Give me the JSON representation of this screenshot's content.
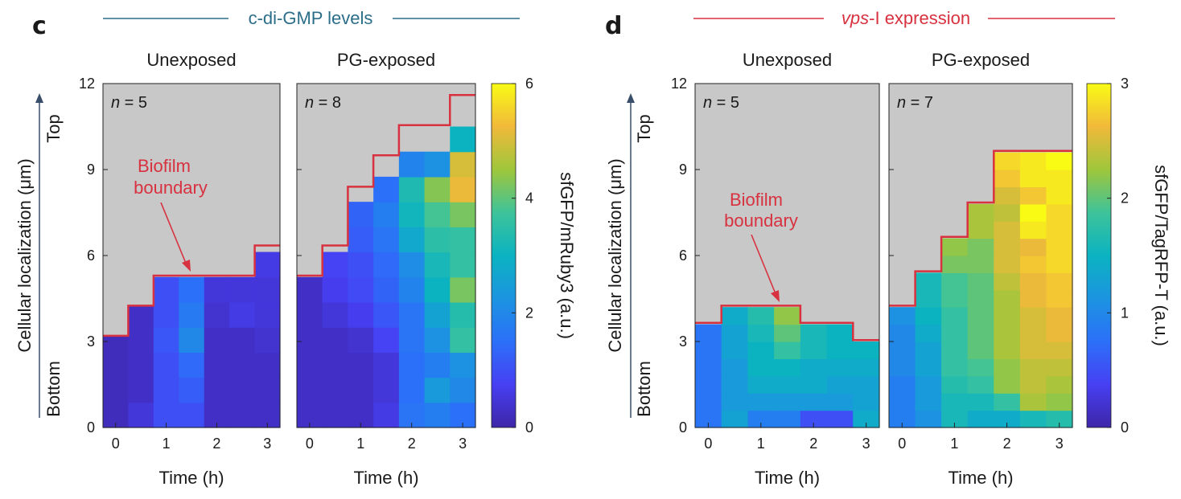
{
  "panels": [
    {
      "letter": "c",
      "heading": "c-di-GMP levels",
      "heading_color": "#2c6e8a",
      "heading_style": "normal",
      "ylabel": "Cellular localization (μm)",
      "y_ticks": [
        "0",
        "3",
        "6",
        "9",
        "12"
      ],
      "top_label": "Top",
      "bottom_label": "Bottom",
      "colorbar_label": "sfGFP/mRuby3 (a.u.)",
      "colorbar_ticks": [
        "0",
        "2",
        "4",
        "6"
      ],
      "colorbar_max": 6,
      "annotation": [
        "Biofilm",
        "boundary"
      ],
      "annotation_color": "#d8313f"
    },
    {
      "letter": "d",
      "heading_italic": "vps",
      "heading": "-I expression",
      "heading_color": "#d8313f",
      "heading_style": "mixed",
      "ylabel": "Cellular localization (μm)",
      "y_ticks": [
        "0",
        "3",
        "6",
        "9",
        "12"
      ],
      "top_label": "Top",
      "bottom_label": "Bottom",
      "colorbar_label": "sfGFP/TagRFP-T (a.u.)",
      "colorbar_ticks": [
        "0",
        "1",
        "2",
        "3"
      ],
      "colorbar_max": 3,
      "annotation": [
        "Biofilm",
        "boundary"
      ],
      "annotation_color": "#d8313f"
    }
  ],
  "chart_data": [
    {
      "type": "heatmap",
      "panel": "c",
      "title": "Unexposed",
      "n_label": "n",
      "n_value": "= 5",
      "xlabel": "Time (h)",
      "ylabel": "Cellular localization (μm)",
      "x_ticks": [
        "0",
        "1",
        "2",
        "3"
      ],
      "xlim": [
        -0.25,
        3.25
      ],
      "ylim": [
        0,
        12
      ],
      "time_bins_h": [
        0,
        0.5,
        1,
        1.5,
        2,
        2.5,
        3
      ],
      "height_bin_um": 0.875,
      "boundary_um": [
        3.2,
        4.25,
        5.3,
        5.3,
        5.3,
        5.3,
        6.35
      ],
      "values": [
        [
          0.2,
          0.5,
          1.0,
          1.0,
          0.3,
          0.3,
          0.3
        ],
        [
          0.2,
          0.3,
          1.0,
          1.2,
          0.3,
          0.3,
          0.3
        ],
        [
          0.2,
          0.3,
          1.0,
          1.4,
          0.3,
          0.3,
          0.3
        ],
        [
          0.2,
          0.3,
          1.1,
          2.0,
          0.3,
          0.3,
          0.4
        ],
        [
          null,
          0.3,
          1.0,
          1.7,
          0.4,
          0.6,
          0.5
        ],
        [
          null,
          null,
          1.0,
          1.5,
          0.5,
          0.5,
          0.5
        ],
        [
          null,
          null,
          null,
          null,
          null,
          null,
          0.6
        ]
      ],
      "colorbar_label": "sfGFP/mRuby3 (a.u.)",
      "vmin": 0,
      "vmax": 6
    },
    {
      "type": "heatmap",
      "panel": "c",
      "title": "PG-exposed",
      "n_label": "n",
      "n_value": "= 8",
      "xlabel": "Time (h)",
      "ylabel": "Cellular localization (μm)",
      "x_ticks": [
        "0",
        "1",
        "2",
        "3"
      ],
      "xlim": [
        -0.25,
        3.25
      ],
      "ylim": [
        0,
        12
      ],
      "time_bins_h": [
        0,
        0.5,
        1,
        1.5,
        2,
        2.5,
        3
      ],
      "height_bin_um": 0.875,
      "boundary_um": [
        5.3,
        6.35,
        8.4,
        9.5,
        10.55,
        10.55,
        11.6
      ],
      "values": [
        [
          0.3,
          0.3,
          0.3,
          0.6,
          1.6,
          1.8,
          1.5
        ],
        [
          0.3,
          0.3,
          0.3,
          0.5,
          1.5,
          2.4,
          2.0
        ],
        [
          0.3,
          0.3,
          0.3,
          0.5,
          1.5,
          1.8,
          2.2
        ],
        [
          0.3,
          0.3,
          0.4,
          0.8,
          1.6,
          2.2,
          3.6
        ],
        [
          0.3,
          0.5,
          0.7,
          1.1,
          1.6,
          2.6,
          3.4
        ],
        [
          0.3,
          0.7,
          0.9,
          1.3,
          1.9,
          3.0,
          4.2
        ],
        [
          null,
          0.8,
          1.0,
          1.4,
          2.1,
          3.2,
          3.6
        ],
        [
          null,
          null,
          1.2,
          1.6,
          2.7,
          3.5,
          3.6
        ],
        [
          null,
          null,
          1.3,
          1.8,
          3.1,
          3.8,
          4.2
        ],
        [
          null,
          null,
          null,
          1.5,
          3.3,
          4.3,
          5.2
        ],
        [
          null,
          null,
          null,
          null,
          1.9,
          2.2,
          5.0
        ],
        [
          null,
          null,
          null,
          null,
          null,
          null,
          3.0
        ]
      ],
      "colorbar_label": "sfGFP/mRuby3 (a.u.)",
      "vmin": 0,
      "vmax": 6
    },
    {
      "type": "heatmap",
      "panel": "d",
      "title": "Unexposed",
      "n_label": "n",
      "n_value": "= 5",
      "xlabel": "Time (h)",
      "ylabel": "Cellular localization (μm)",
      "x_ticks": [
        "0",
        "1",
        "2",
        "3"
      ],
      "xlim": [
        -0.25,
        3.25
      ],
      "ylim": [
        0,
        12
      ],
      "time_bins_h": [
        0,
        0.5,
        1,
        1.5,
        2,
        2.5,
        3
      ],
      "height_bin_um": 0.6,
      "boundary_um": [
        3.65,
        4.25,
        4.25,
        4.25,
        3.65,
        3.65,
        3.05
      ],
      "values": [
        [
          0.8,
          1.3,
          0.9,
          0.9,
          0.5,
          0.5,
          1.4
        ],
        [
          0.8,
          1.2,
          1.2,
          1.2,
          1.2,
          1.2,
          1.3
        ],
        [
          0.8,
          1.2,
          1.4,
          1.4,
          1.4,
          1.3,
          1.3
        ],
        [
          0.8,
          1.2,
          1.5,
          1.5,
          1.4,
          1.4,
          1.4
        ],
        [
          0.8,
          1.3,
          1.5,
          1.8,
          1.6,
          1.5,
          1.5
        ],
        [
          0.8,
          1.3,
          1.6,
          2.0,
          1.6,
          1.5,
          null
        ],
        [
          null,
          1.4,
          1.7,
          2.2,
          null,
          null,
          null
        ]
      ],
      "colorbar_label": "sfGFP/TagRFP-T (a.u.)",
      "vmin": 0,
      "vmax": 3
    },
    {
      "type": "heatmap",
      "panel": "d",
      "title": "PG-exposed",
      "n_label": "n",
      "n_value": "= 7",
      "xlabel": "Time (h)",
      "ylabel": "Cellular localization (μm)",
      "x_ticks": [
        "0",
        "1",
        "2",
        "3"
      ],
      "xlim": [
        -0.25,
        3.25
      ],
      "ylim": [
        0,
        12
      ],
      "time_bins_h": [
        0,
        0.5,
        1,
        1.5,
        2,
        2.5,
        3
      ],
      "height_bin_um": 0.6,
      "boundary_um": [
        4.25,
        5.45,
        6.65,
        7.85,
        9.65,
        9.65,
        9.65
      ],
      "values": [
        [
          0.9,
          1.1,
          1.6,
          1.4,
          1.4,
          1.6,
          1.7
        ],
        [
          0.9,
          1.2,
          1.6,
          1.6,
          1.8,
          2.3,
          2.2
        ],
        [
          0.9,
          1.2,
          1.7,
          1.8,
          2.2,
          2.4,
          2.3
        ],
        [
          1.0,
          1.3,
          1.8,
          1.9,
          2.2,
          2.4,
          2.4
        ],
        [
          1.0,
          1.3,
          1.8,
          2.0,
          2.3,
          2.5,
          2.5
        ],
        [
          1.0,
          1.4,
          1.8,
          2.0,
          2.3,
          2.5,
          2.6
        ],
        [
          1.1,
          1.5,
          1.8,
          2.0,
          2.3,
          2.5,
          2.6
        ],
        [
          null,
          1.6,
          1.9,
          2.0,
          2.3,
          2.6,
          2.7
        ],
        [
          null,
          1.6,
          1.9,
          2.0,
          2.4,
          2.6,
          2.7
        ],
        [
          null,
          null,
          2.1,
          2.1,
          2.5,
          2.7,
          2.8
        ],
        [
          null,
          null,
          2.2,
          2.1,
          2.5,
          2.6,
          2.8
        ],
        [
          null,
          null,
          null,
          2.3,
          2.5,
          2.9,
          2.8
        ],
        [
          null,
          null,
          null,
          2.3,
          2.4,
          3.0,
          2.8
        ],
        [
          null,
          null,
          null,
          null,
          2.5,
          2.7,
          2.9
        ],
        [
          null,
          null,
          null,
          null,
          2.7,
          2.9,
          2.9
        ],
        [
          null,
          null,
          null,
          null,
          2.8,
          2.9,
          3.0
        ]
      ],
      "colorbar_label": "sfGFP/TagRFP-T (a.u.)",
      "vmin": 0,
      "vmax": 3
    }
  ]
}
